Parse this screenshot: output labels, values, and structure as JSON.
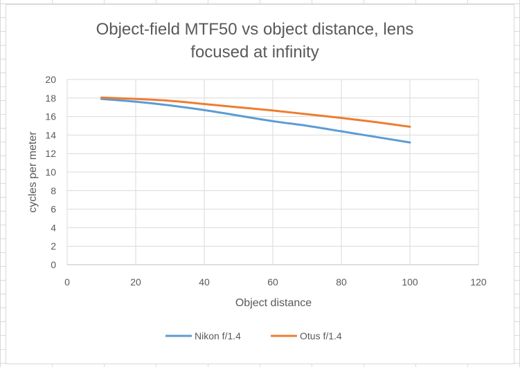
{
  "chart_data": {
    "type": "line",
    "title_lines": [
      "Object-field MTF50 vs object distance, lens",
      "focused at infinity"
    ],
    "xlabel": "Object distance",
    "ylabel": "cycles per meter",
    "xlim": [
      0,
      120
    ],
    "ylim": [
      0,
      20
    ],
    "xticks": [
      "0",
      "20",
      "40",
      "60",
      "80",
      "100",
      "120"
    ],
    "yticks": [
      "0",
      "2",
      "4",
      "6",
      "8",
      "10",
      "12",
      "14",
      "16",
      "18",
      "20"
    ],
    "grid": true,
    "legend_position": "bottom",
    "series": [
      {
        "name": "Nikon f/1.4",
        "color": "#5B9BD5",
        "x": [
          10,
          20,
          30,
          40,
          50,
          60,
          70,
          80,
          90,
          100
        ],
        "y": [
          17.9,
          17.6,
          17.2,
          16.7,
          16.1,
          15.5,
          15.0,
          14.4,
          13.8,
          13.2
        ]
      },
      {
        "name": "Otus f/1.4",
        "color": "#ED7D31",
        "x": [
          10,
          20,
          30,
          40,
          50,
          60,
          70,
          80,
          90,
          100
        ],
        "y": [
          18.05,
          17.9,
          17.7,
          17.35,
          17.0,
          16.65,
          16.25,
          15.85,
          15.4,
          14.9
        ]
      }
    ]
  }
}
